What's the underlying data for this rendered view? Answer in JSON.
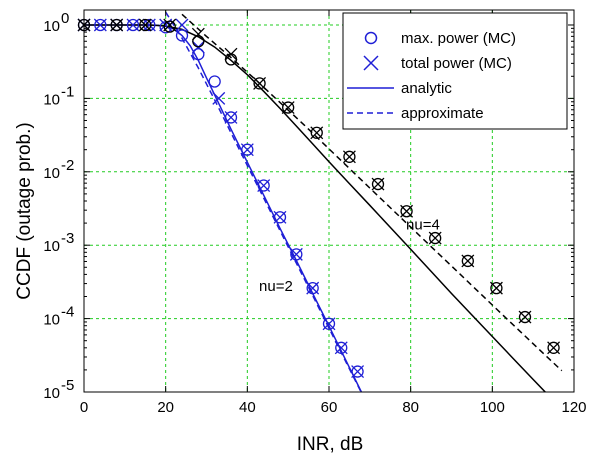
{
  "chart_data": {
    "type": "line",
    "title": "",
    "xlabel": "INR, dB",
    "ylabel": "CCDF (outage prob.)",
    "xlim": [
      0,
      120
    ],
    "ylim": [
      1e-05,
      1.6
    ],
    "yscale": "log",
    "grid": true,
    "grid_color": "#22cc22",
    "legend_position": "top-right",
    "x_ticks": [
      "0",
      "20",
      "40",
      "60",
      "80",
      "100",
      "120"
    ],
    "x_tick_values": [
      0,
      20,
      40,
      60,
      80,
      100,
      120
    ],
    "y_ticks": [
      {
        "value": 1e-05,
        "base": "10",
        "exp": "-5"
      },
      {
        "value": 0.0001,
        "base": "10",
        "exp": "-4"
      },
      {
        "value": 0.001,
        "base": "10",
        "exp": "-3"
      },
      {
        "value": 0.01,
        "base": "10",
        "exp": "-2"
      },
      {
        "value": 0.1,
        "base": "10",
        "exp": "-1"
      },
      {
        "value": 1,
        "base": "10",
        "exp": "0"
      }
    ],
    "legend": [
      {
        "label": "max. power (MC)",
        "marker": "circle"
      },
      {
        "label": "total power (MC)",
        "marker": "x"
      },
      {
        "label": "analytic",
        "style": "solid"
      },
      {
        "label": "approximate",
        "style": "dashed"
      }
    ],
    "annotations": [
      {
        "text": "nu=2",
        "x": 47,
        "y": 0.00028
      },
      {
        "text": "nu=4",
        "x": 83,
        "y": 0.0019
      }
    ],
    "series": [
      {
        "group": "nu=2",
        "kind": "analytic",
        "color": "#1f1fd6",
        "x": [
          0,
          16,
          18,
          20,
          22,
          24,
          26,
          28,
          30,
          33,
          36,
          40,
          44,
          48,
          52,
          56,
          60,
          64,
          68,
          72
        ],
        "y": [
          1,
          1,
          0.99,
          0.96,
          0.88,
          0.72,
          0.52,
          0.33,
          0.19,
          0.085,
          0.038,
          0.0135,
          0.0048,
          0.0017,
          0.00062,
          0.00022,
          7.9e-05,
          2.8e-05,
          9.8e-06,
          3.5e-06
        ]
      },
      {
        "group": "nu=2",
        "kind": "approximate",
        "color": "#1f1fd6",
        "x": [
          20,
          24,
          28,
          32,
          36,
          40,
          44,
          48,
          52,
          56,
          60,
          64,
          68,
          72
        ],
        "y": [
          1.5,
          0.66,
          0.26,
          0.095,
          0.034,
          0.0122,
          0.0044,
          0.00158,
          0.00057,
          0.000206,
          7.4e-05,
          2.67e-05,
          9.6e-06,
          3.5e-06
        ]
      },
      {
        "group": "nu=4",
        "kind": "analytic",
        "color": "#000000",
        "x": [
          0,
          16,
          20,
          24,
          28,
          32,
          36,
          40,
          44,
          48,
          52,
          56,
          60,
          65,
          70,
          75,
          80,
          85,
          90,
          95,
          100,
          105,
          110,
          115,
          117
        ],
        "y": [
          1,
          1,
          0.97,
          0.87,
          0.69,
          0.5,
          0.33,
          0.21,
          0.125,
          0.073,
          0.042,
          0.024,
          0.0137,
          0.0069,
          0.0035,
          0.00175,
          0.00088,
          0.00044,
          0.00022,
          0.000112,
          5.7e-05,
          2.9e-05,
          1.48e-05,
          7.6e-06,
          5.8e-06
        ]
      },
      {
        "group": "nu=4",
        "kind": "approximate",
        "color": "#000000",
        "x": [
          24,
          30,
          36,
          42,
          48,
          54,
          60,
          66,
          72,
          78,
          84,
          90,
          96,
          102,
          108,
          114,
          117
        ],
        "y": [
          1.4,
          0.7,
          0.36,
          0.18,
          0.088,
          0.043,
          0.0205,
          0.0098,
          0.0047,
          0.00225,
          0.00108,
          0.00052,
          0.00025,
          0.00012,
          5.8e-05,
          2.8e-05,
          1.95e-05
        ]
      },
      {
        "group": "nu=2",
        "kind": "max_power_mc",
        "color": "#1f1fd6",
        "marker": "circle",
        "x": [
          0,
          4,
          8,
          12,
          16,
          20,
          24,
          28,
          32,
          36,
          40,
          44,
          48,
          52,
          56,
          60,
          63,
          67
        ],
        "y": [
          1,
          1,
          1,
          1,
          1,
          0.93,
          0.72,
          0.4,
          0.17,
          0.055,
          0.02,
          0.0065,
          0.0024,
          0.00075,
          0.00026,
          8.5e-05,
          4e-05,
          1.9e-05
        ]
      },
      {
        "group": "nu=2",
        "kind": "total_power_mc",
        "color": "#1f1fd6",
        "marker": "x",
        "x": [
          0,
          4,
          8,
          12,
          16,
          20,
          24,
          28,
          33,
          36,
          40,
          44,
          48,
          52,
          56,
          60,
          63,
          67
        ],
        "y": [
          1,
          1,
          1,
          1,
          1,
          1,
          1,
          0.5,
          0.1,
          0.055,
          0.02,
          0.0065,
          0.0024,
          0.00075,
          0.00026,
          8.5e-05,
          4e-05,
          1.9e-05
        ]
      },
      {
        "group": "nu=4",
        "kind": "max_power_mc",
        "color": "#000000",
        "marker": "circle",
        "x": [
          0,
          8,
          15,
          21,
          28,
          36,
          43,
          50,
          57,
          65,
          72,
          79,
          86,
          94,
          101,
          108,
          115
        ],
        "y": [
          1,
          1,
          1,
          0.95,
          0.6,
          0.34,
          0.16,
          0.075,
          0.034,
          0.016,
          0.0068,
          0.0029,
          0.00125,
          0.00061,
          0.00026,
          0.000105,
          4e-05
        ]
      },
      {
        "group": "nu=4",
        "kind": "total_power_mc",
        "color": "#000000",
        "marker": "x",
        "x": [
          0,
          8,
          15,
          21,
          28,
          36,
          43,
          50,
          57,
          65,
          72,
          79,
          86,
          94,
          101,
          108,
          115
        ],
        "y": [
          1,
          1,
          1,
          1,
          0.75,
          0.4,
          0.16,
          0.075,
          0.034,
          0.016,
          0.0068,
          0.0029,
          0.00125,
          0.00061,
          0.00026,
          0.000105,
          4e-05
        ]
      }
    ]
  }
}
